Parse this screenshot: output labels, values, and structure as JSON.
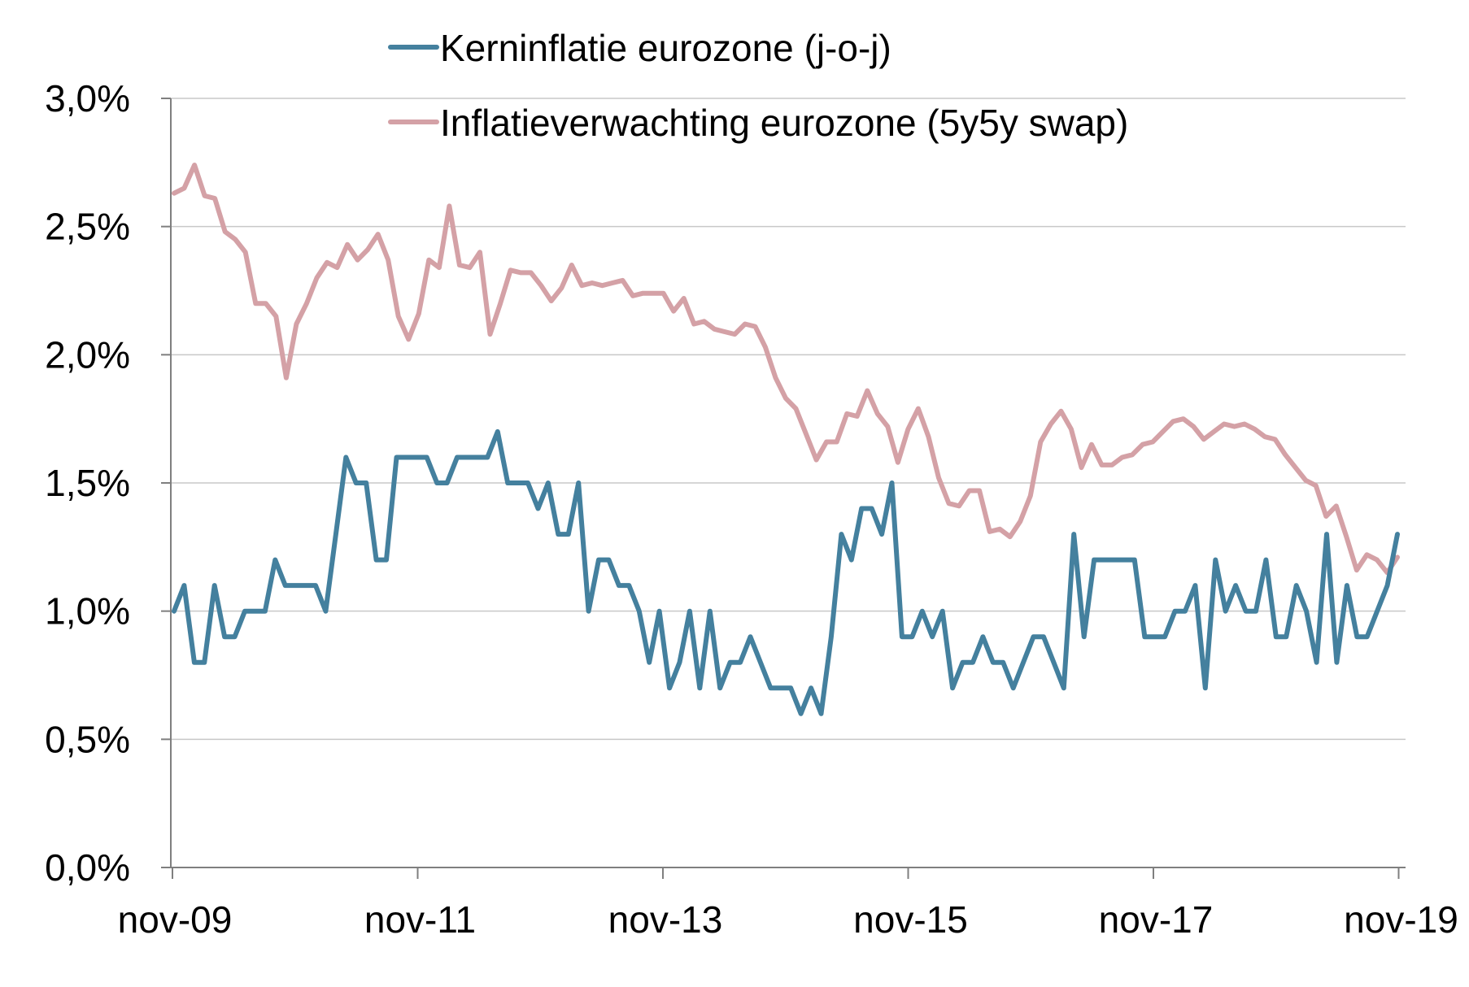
{
  "chart_data": {
    "type": "line",
    "title": "",
    "xlabel": "",
    "ylabel": "",
    "ylim": [
      0,
      3
    ],
    "y_tick_labels": [
      "0,0%",
      "0,5%",
      "1,0%",
      "1,5%",
      "2,0%",
      "2,5%",
      "3,0%"
    ],
    "x_tick_labels": [
      "nov-09",
      "nov-11",
      "nov-13",
      "nov-15",
      "nov-17",
      "nov-19"
    ],
    "grid": "horizontal",
    "legend_position": "top",
    "series": [
      {
        "name": "Kerninflatie eurozone (j-o-j)",
        "color": "#44809e",
        "values": [
          1.0,
          1.1,
          0.8,
          0.8,
          1.1,
          0.9,
          0.9,
          1.0,
          1.0,
          1.0,
          1.2,
          1.1,
          1.1,
          1.1,
          1.1,
          1.0,
          1.3,
          1.6,
          1.5,
          1.5,
          1.2,
          1.2,
          1.6,
          1.6,
          1.6,
          1.6,
          1.5,
          1.5,
          1.6,
          1.6,
          1.6,
          1.6,
          1.7,
          1.5,
          1.5,
          1.5,
          1.4,
          1.5,
          1.3,
          1.3,
          1.5,
          1.0,
          1.2,
          1.2,
          1.1,
          1.1,
          1.0,
          0.8,
          1.0,
          0.7,
          0.8,
          1.0,
          0.7,
          1.0,
          0.7,
          0.8,
          0.8,
          0.9,
          0.8,
          0.7,
          0.7,
          0.7,
          0.6,
          0.7,
          0.6,
          0.9,
          1.3,
          1.2,
          1.4,
          1.4,
          1.3,
          1.5,
          0.9,
          0.9,
          1.0,
          0.9,
          1.0,
          0.7,
          0.8,
          0.8,
          0.9,
          0.8,
          0.8,
          0.7,
          0.8,
          0.9,
          0.9,
          0.8,
          0.7,
          1.3,
          0.9,
          1.2,
          1.2,
          1.2,
          1.2,
          1.2,
          0.9,
          0.9,
          0.9,
          1.0,
          1.0,
          1.1,
          0.7,
          1.2,
          1.0,
          1.1,
          1.0,
          1.0,
          1.2,
          0.9,
          0.9,
          1.1,
          1.0,
          0.8,
          1.3,
          0.8,
          1.1,
          0.9,
          0.9,
          1.0,
          1.1,
          1.3
        ]
      },
      {
        "name": "Inflatieverwachting eurozone (5y5y swap)",
        "color": "#d4a1a6",
        "values": [
          2.63,
          2.65,
          2.74,
          2.62,
          2.61,
          2.48,
          2.45,
          2.4,
          2.2,
          2.2,
          2.15,
          1.91,
          2.12,
          2.2,
          2.3,
          2.36,
          2.34,
          2.43,
          2.37,
          2.41,
          2.47,
          2.37,
          2.15,
          2.06,
          2.16,
          2.37,
          2.34,
          2.58,
          2.35,
          2.34,
          2.4,
          2.08,
          2.2,
          2.33,
          2.32,
          2.32,
          2.27,
          2.21,
          2.26,
          2.35,
          2.27,
          2.28,
          2.27,
          2.28,
          2.29,
          2.23,
          2.24,
          2.24,
          2.24,
          2.17,
          2.22,
          2.12,
          2.13,
          2.1,
          2.09,
          2.08,
          2.12,
          2.11,
          2.03,
          1.91,
          1.83,
          1.79,
          1.69,
          1.59,
          1.66,
          1.66,
          1.77,
          1.76,
          1.86,
          1.77,
          1.72,
          1.58,
          1.71,
          1.79,
          1.68,
          1.52,
          1.42,
          1.41,
          1.47,
          1.47,
          1.31,
          1.32,
          1.29,
          1.35,
          1.45,
          1.66,
          1.73,
          1.78,
          1.71,
          1.56,
          1.65,
          1.57,
          1.57,
          1.6,
          1.61,
          1.65,
          1.66,
          1.7,
          1.74,
          1.75,
          1.72,
          1.67,
          1.7,
          1.73,
          1.72,
          1.73,
          1.71,
          1.68,
          1.67,
          1.61,
          1.56,
          1.51,
          1.49,
          1.37,
          1.41,
          1.29,
          1.16,
          1.22,
          1.2,
          1.15,
          1.21
        ]
      }
    ]
  }
}
